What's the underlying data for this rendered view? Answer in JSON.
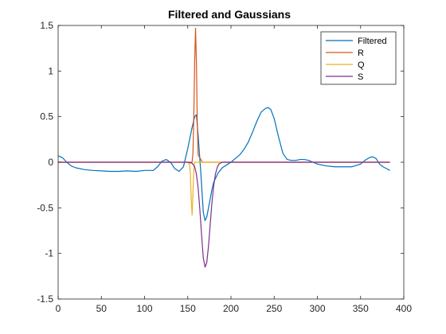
{
  "chart_data": {
    "type": "line",
    "title": "Filtered and Gaussians",
    "xlabel": "",
    "ylabel": "",
    "xlim": [
      0,
      400
    ],
    "ylim": [
      -1.5,
      1.5
    ],
    "xticks": [
      0,
      50,
      100,
      150,
      200,
      250,
      300,
      350,
      400
    ],
    "yticks": [
      -1.5,
      -1,
      -0.5,
      0,
      0.5,
      1,
      1.5
    ],
    "xtick_labels": [
      "0",
      "50",
      "100",
      "150",
      "200",
      "250",
      "300",
      "350",
      "400"
    ],
    "ytick_labels": [
      "-1.5",
      "-1",
      "-0.5",
      "0",
      "0.5",
      "1",
      "1.5"
    ],
    "grid": false,
    "legend_position": "top-right",
    "series": [
      {
        "name": "Filtered",
        "color": "#0072BD",
        "x": [
          0,
          5,
          10,
          15,
          20,
          30,
          40,
          50,
          60,
          70,
          80,
          90,
          100,
          110,
          115,
          120,
          125,
          130,
          135,
          140,
          145,
          150,
          155,
          158,
          160,
          162,
          165,
          168,
          170,
          172,
          175,
          178,
          180,
          185,
          190,
          195,
          200,
          205,
          210,
          215,
          220,
          225,
          230,
          235,
          240,
          243,
          246,
          250,
          255,
          260,
          265,
          270,
          275,
          280,
          285,
          290,
          295,
          300,
          310,
          320,
          330,
          340,
          350,
          355,
          360,
          364,
          368,
          372,
          376,
          380,
          384
        ],
        "y": [
          0.07,
          0.05,
          0.0,
          -0.04,
          -0.06,
          -0.08,
          -0.09,
          -0.095,
          -0.1,
          -0.1,
          -0.095,
          -0.1,
          -0.09,
          -0.09,
          -0.05,
          0.01,
          0.03,
          0.0,
          -0.07,
          -0.1,
          -0.05,
          0.15,
          0.38,
          0.5,
          0.52,
          0.3,
          -0.1,
          -0.55,
          -0.64,
          -0.6,
          -0.45,
          -0.3,
          -0.22,
          -0.12,
          -0.06,
          -0.03,
          0.0,
          0.04,
          0.08,
          0.14,
          0.22,
          0.33,
          0.45,
          0.55,
          0.59,
          0.6,
          0.58,
          0.48,
          0.28,
          0.1,
          0.03,
          0.02,
          0.02,
          0.03,
          0.03,
          0.02,
          0.0,
          -0.02,
          -0.04,
          -0.05,
          -0.05,
          -0.05,
          -0.02,
          0.02,
          0.05,
          0.06,
          0.04,
          -0.02,
          -0.05,
          -0.07,
          -0.09
        ]
      },
      {
        "name": "R",
        "color": "#D95319",
        "x": [
          0,
          150,
          155,
          156,
          157,
          158,
          159,
          160,
          161,
          162,
          167,
          384
        ],
        "y": [
          0,
          0,
          0,
          0.1,
          0.5,
          1.1,
          1.47,
          1.1,
          0.45,
          0.08,
          0,
          0
        ]
      },
      {
        "name": "Q",
        "color": "#EDB120",
        "x": [
          0,
          150,
          152,
          153,
          154,
          155,
          156,
          157,
          158,
          160,
          384
        ],
        "y": [
          0,
          0,
          -0.02,
          -0.12,
          -0.4,
          -0.58,
          -0.35,
          -0.08,
          0,
          0,
          0
        ]
      },
      {
        "name": "S",
        "color": "#7E2F8E",
        "x": [
          0,
          150,
          155,
          158,
          160,
          162,
          164,
          166,
          168,
          170,
          172,
          174,
          176,
          178,
          180,
          182,
          184,
          186,
          188,
          190,
          384
        ],
        "y": [
          0,
          0,
          -0.01,
          -0.05,
          -0.13,
          -0.28,
          -0.52,
          -0.8,
          -1.05,
          -1.15,
          -1.1,
          -0.92,
          -0.68,
          -0.44,
          -0.26,
          -0.13,
          -0.06,
          -0.02,
          -0.01,
          0,
          0
        ]
      }
    ]
  }
}
